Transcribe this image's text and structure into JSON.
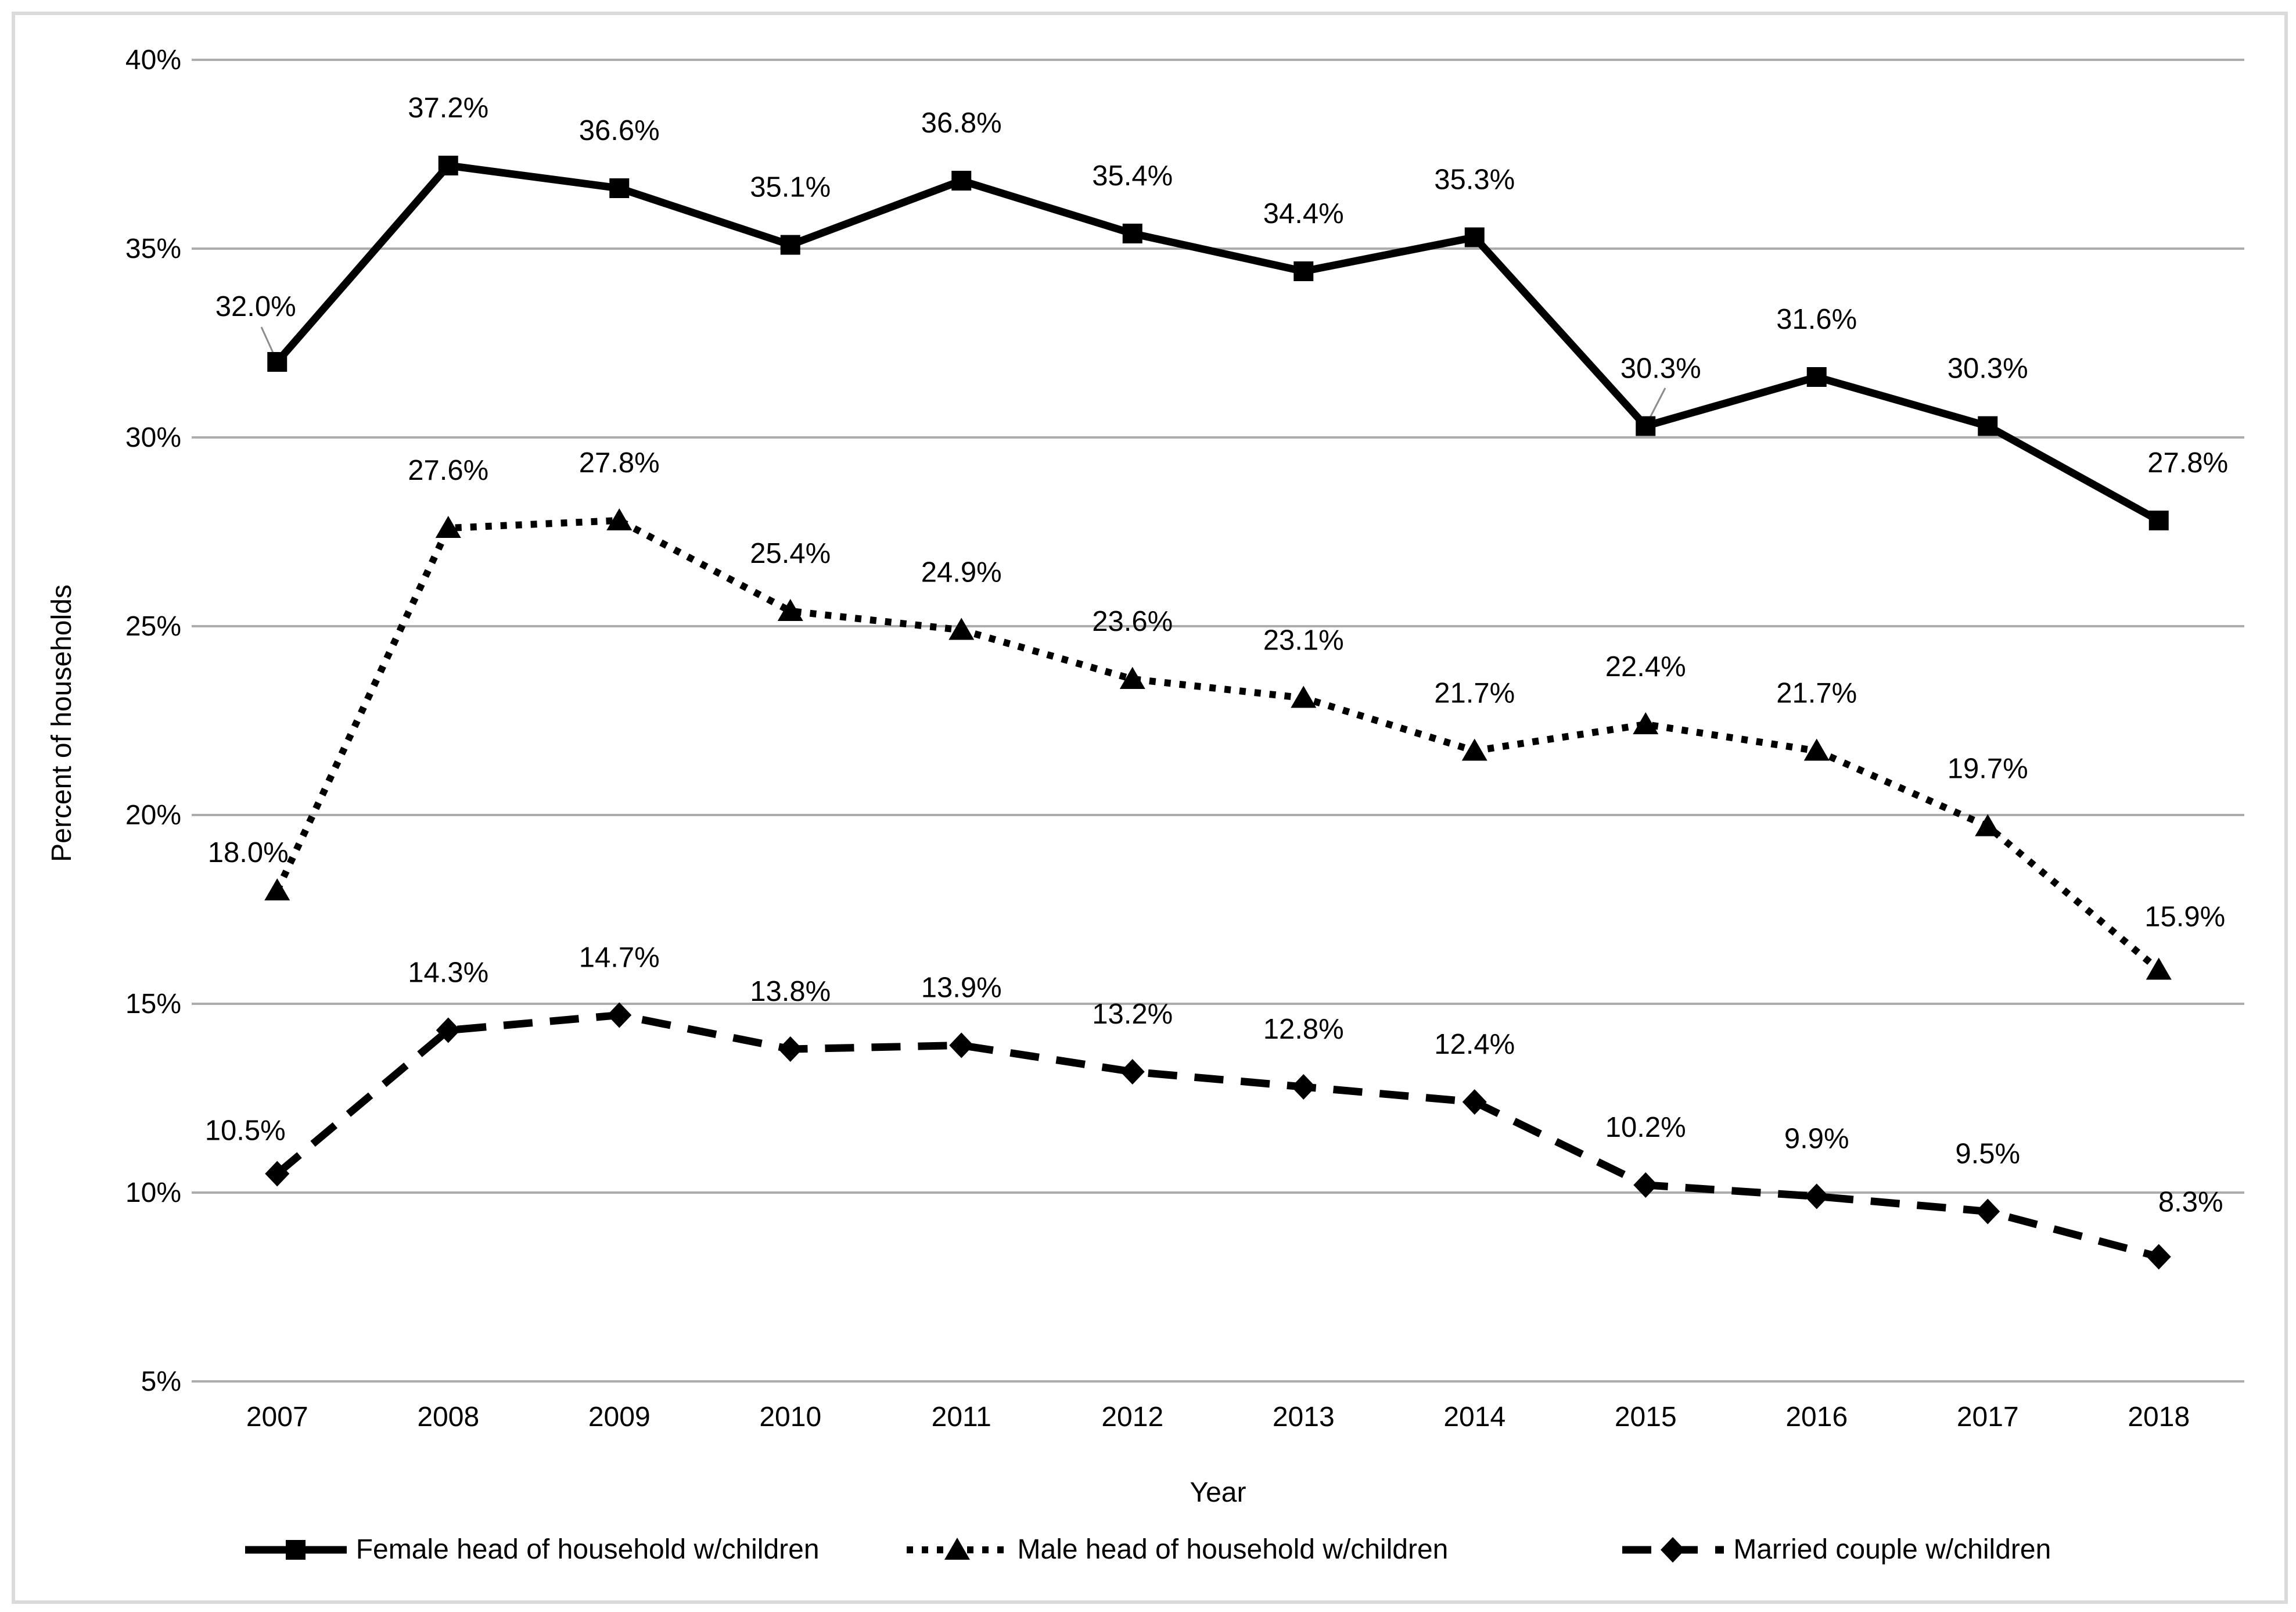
{
  "chart_data": {
    "type": "line",
    "title": "",
    "xlabel": "Year",
    "ylabel": "Percent of households",
    "x": [
      2007,
      2008,
      2009,
      2010,
      2011,
      2012,
      2013,
      2014,
      2015,
      2016,
      2017,
      2018
    ],
    "xtick_labels": [
      "2007",
      "2008",
      "2009",
      "2010",
      "2011",
      "2012",
      "2013",
      "2014",
      "2015",
      "2016",
      "2017",
      "2018"
    ],
    "ylim": [
      5,
      40
    ],
    "ytick_step": 5,
    "ytick_labels": [
      "40%",
      "35%",
      "30%",
      "25%",
      "20%",
      "15%",
      "10%",
      "5%"
    ],
    "grid": "horizontal-only",
    "legend_position": "bottom",
    "series": [
      {
        "name": "Female head of household w/children",
        "line_style": "solid",
        "marker": "square",
        "values": [
          32.0,
          37.2,
          36.6,
          35.1,
          36.8,
          35.4,
          34.4,
          35.3,
          30.3,
          31.6,
          30.3,
          27.8
        ],
        "point_labels": [
          "32.0%",
          "37.2%",
          "36.6%",
          "35.1%",
          "36.8%",
          "35.4%",
          "34.4%",
          "35.3%",
          "30.3%",
          "31.6%",
          "30.3%",
          "27.8%"
        ]
      },
      {
        "name": "Male head of household w/children",
        "line_style": "dotted",
        "marker": "triangle",
        "values": [
          18.0,
          27.6,
          27.8,
          25.4,
          24.9,
          23.6,
          23.1,
          21.7,
          22.4,
          21.7,
          19.7,
          15.9
        ],
        "point_labels": [
          "18.0%",
          "27.6%",
          "27.8%",
          "25.4%",
          "24.9%",
          "23.6%",
          "23.1%",
          "21.7%",
          "22.4%",
          "21.7%",
          "19.7%",
          "15.9%"
        ]
      },
      {
        "name": "Married couple w/children",
        "line_style": "dashed",
        "marker": "diamond",
        "values": [
          10.5,
          14.3,
          14.7,
          13.8,
          13.9,
          13.2,
          12.8,
          12.4,
          10.2,
          9.9,
          9.5,
          8.3
        ],
        "point_labels": [
          "10.5%",
          "14.3%",
          "14.7%",
          "13.8%",
          "13.9%",
          "13.2%",
          "12.8%",
          "12.4%",
          "10.2%",
          "9.9%",
          "9.5%",
          "8.3%"
        ]
      }
    ],
    "colors": {
      "series_line": "#000000",
      "data_label_text": "#000000",
      "axis_text": "#000000",
      "gridline": "#acacac",
      "leader_line": "#8c8c8c",
      "frame_border": "#dadada",
      "background": "#ffffff"
    }
  }
}
